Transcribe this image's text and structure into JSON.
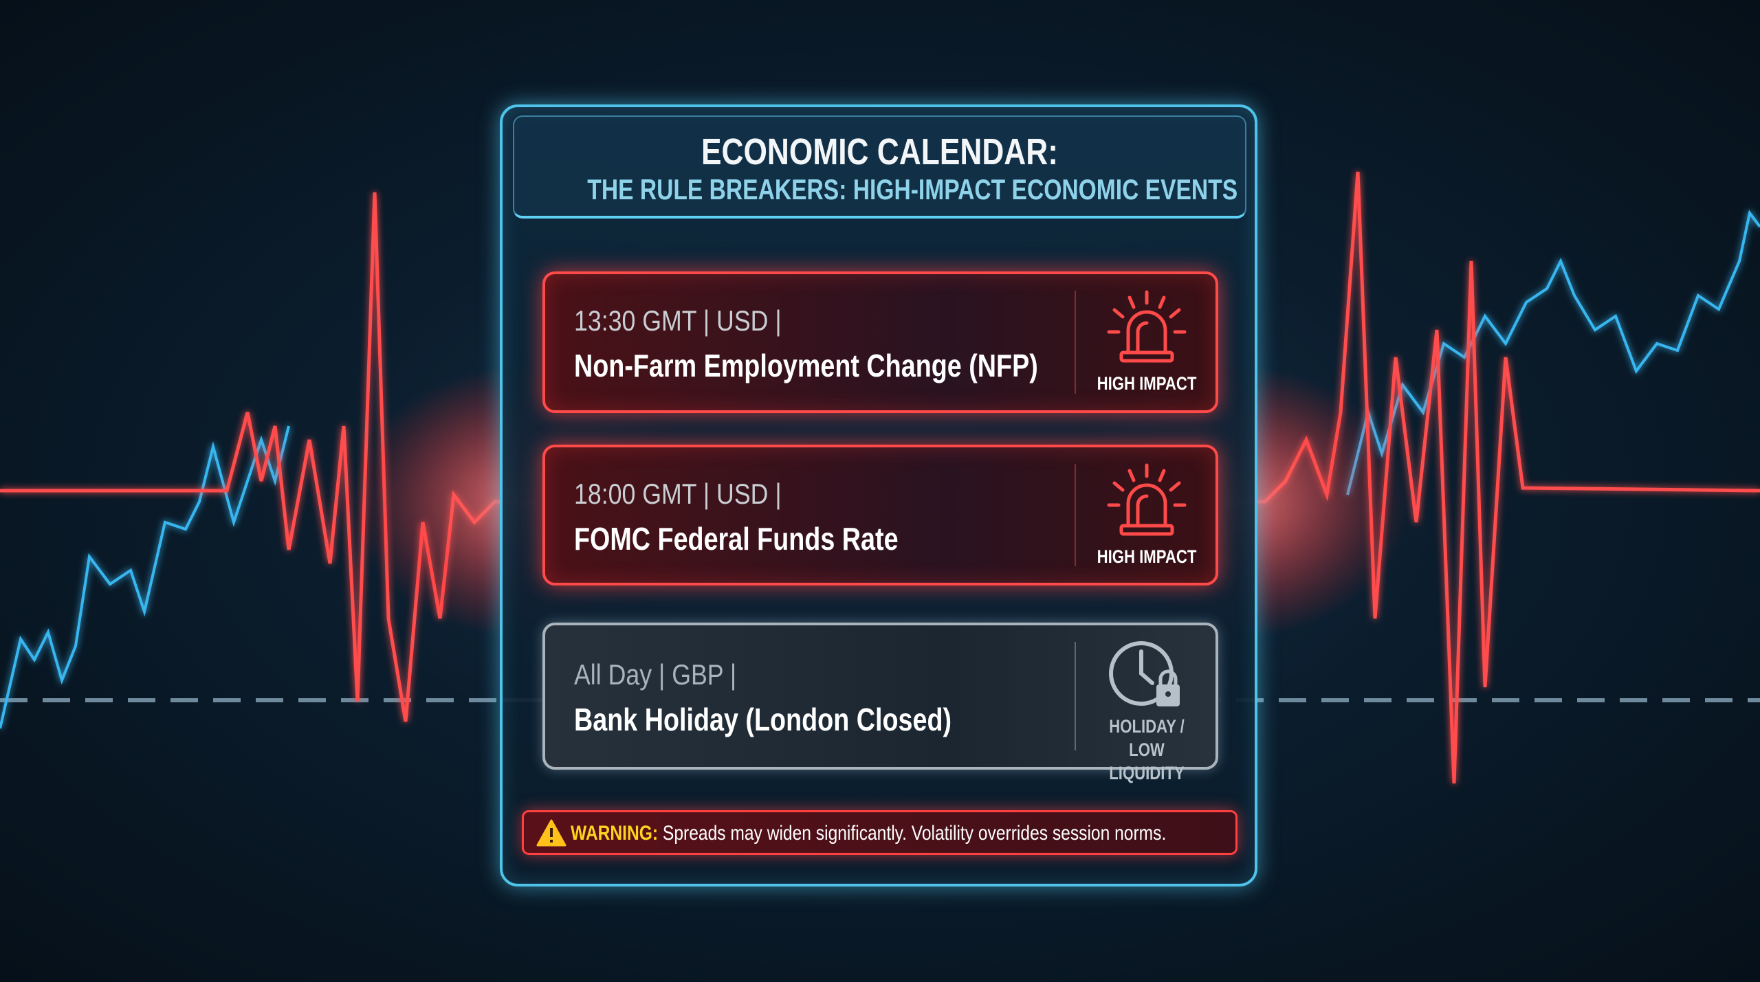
{
  "header": {
    "title": "ECONOMIC CALENDAR:",
    "subtitle": "THE RULE BREAKERS: HIGH-IMPACT ECONOMIC EVENTS"
  },
  "events": [
    {
      "time": "13:30 GMT  | USD |",
      "name": "Non-Farm Employment Change (NFP)",
      "badge": "HIGH IMPACT",
      "badge_icon": "siren-icon",
      "impact": "high"
    },
    {
      "time": "18:00 GMT  | USD |",
      "name": "FOMC Federal Funds Rate",
      "badge": "HIGH IMPACT",
      "badge_icon": "siren-icon",
      "impact": "high"
    },
    {
      "time": "All Day  | GBP |",
      "name": "Bank Holiday (London Closed)",
      "badge_line1": "HOLIDAY /",
      "badge_line2": "LOW LIQUIDITY",
      "badge_icon": "clock-lock-icon",
      "impact": "low"
    }
  ],
  "warning": {
    "icon": "warning-triangle-icon",
    "label": "WARNING:",
    "text": " Spreads may widen significantly. Volatility overrides session norms."
  },
  "colors": {
    "high_impact": "#ff4a4a",
    "low_impact": "#a9b4bd",
    "accent": "#4fc3ea",
    "warning_label": "#ffd21f"
  }
}
